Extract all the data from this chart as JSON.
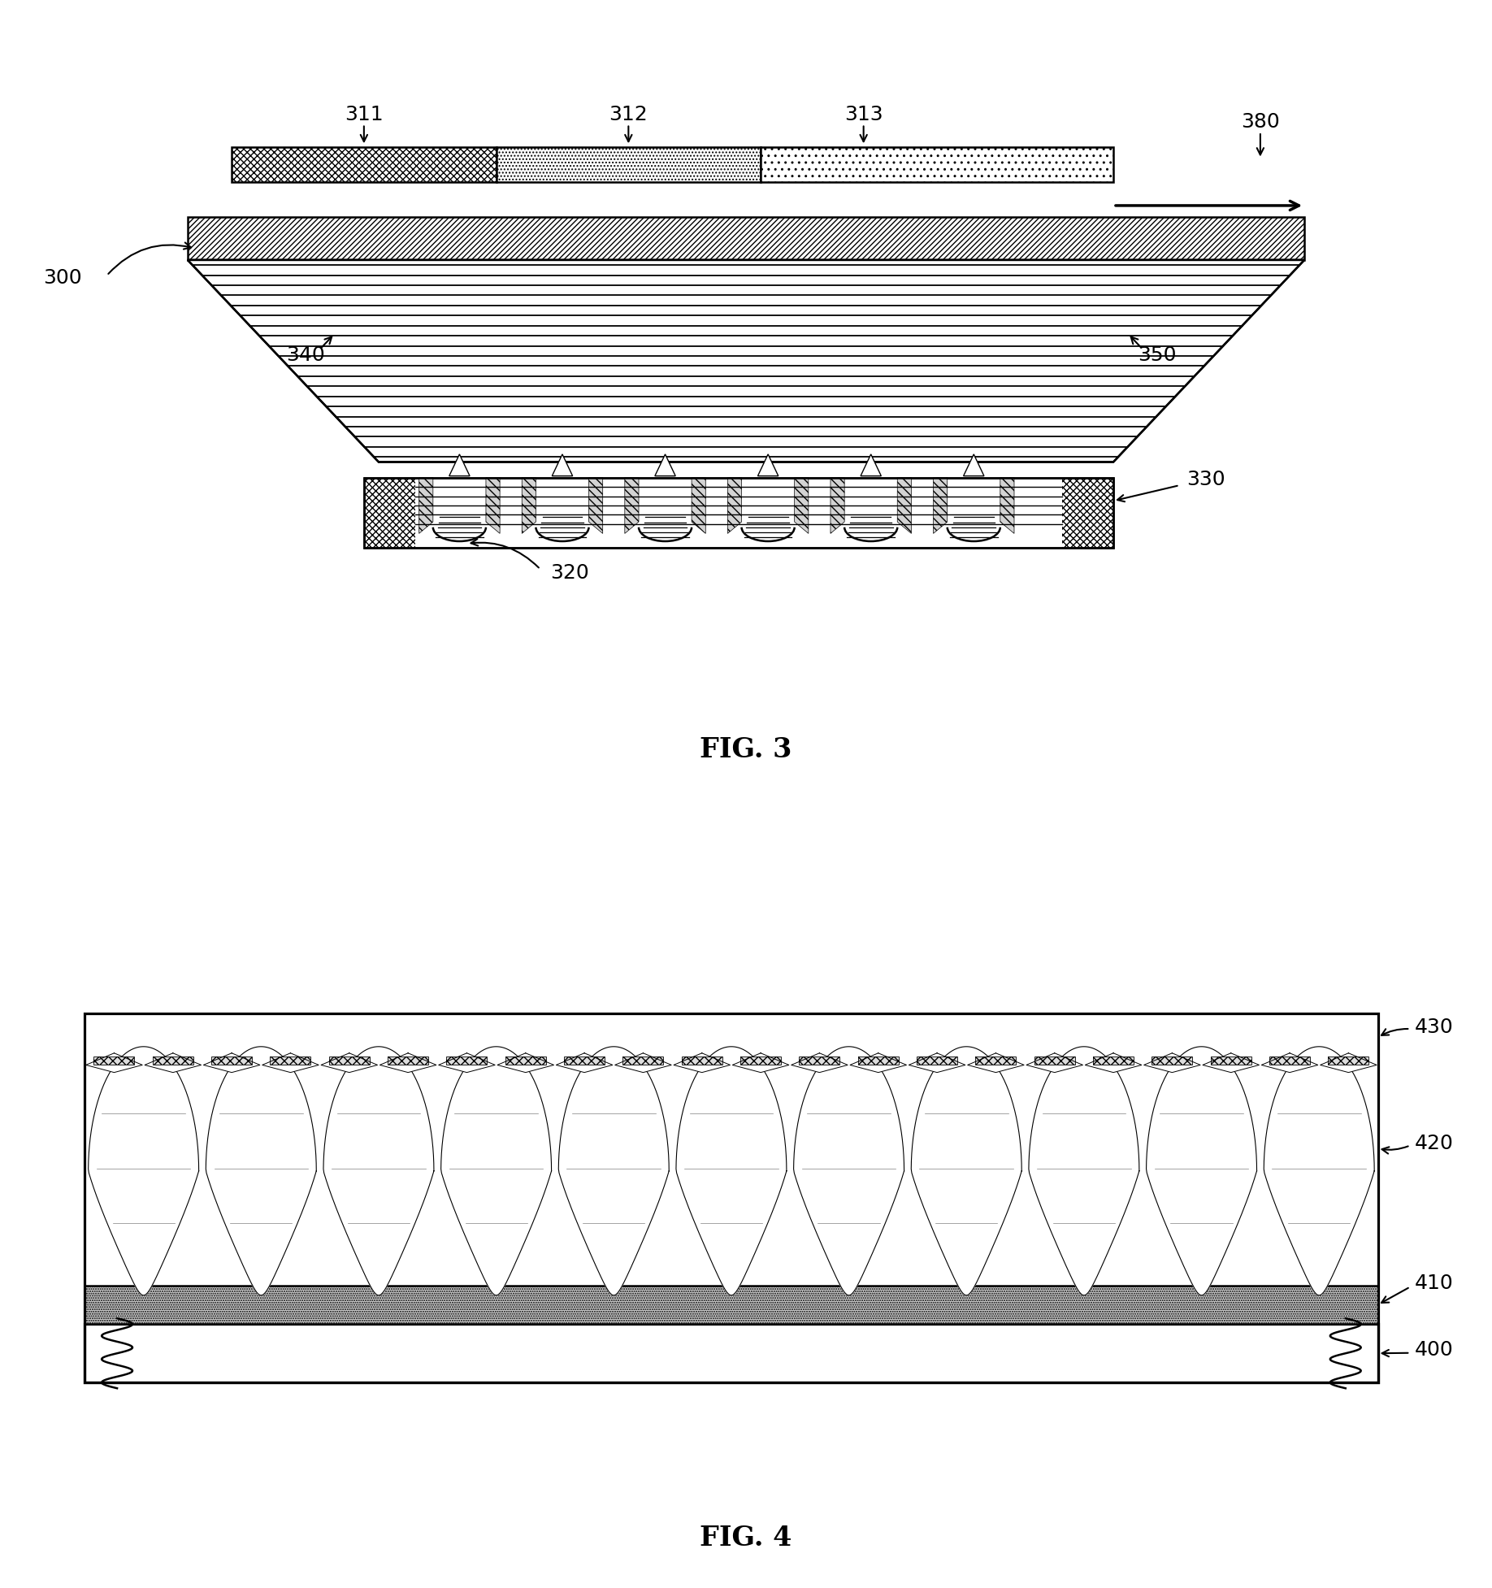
{
  "fig3_label": "FIG. 3",
  "fig4_label": "FIG. 4",
  "bg_color": "#ffffff",
  "line_color": "#000000",
  "fontsize_label": 24,
  "fontsize_annot": 18
}
